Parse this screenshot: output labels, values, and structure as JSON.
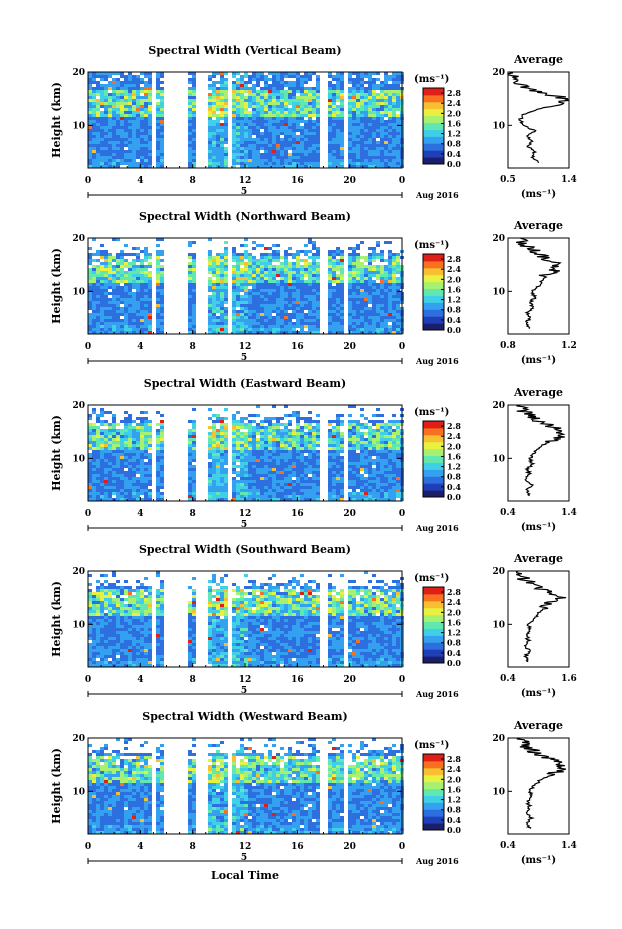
{
  "figure": {
    "xlabel": "Local Time",
    "date_label": "Aug 2016",
    "colorbar_unit": "(ms⁻¹)",
    "colorbar_ticks": [
      "0.0",
      "0.4",
      "0.8",
      "1.2",
      "1.6",
      "2.0",
      "2.4",
      "2.8"
    ],
    "colormap": [
      "#1b1f6b",
      "#1f3fb8",
      "#2e6fe0",
      "#33a0f0",
      "#3fd0e8",
      "#60e8b0",
      "#a8f070",
      "#e8f040",
      "#f8c030",
      "#f87020",
      "#e02018"
    ]
  },
  "chart_data": [
    {
      "type": "heatmap",
      "title": "Spectral Width (Vertical Beam)",
      "ylabel": "Height (km)",
      "ylim": [
        2,
        20
      ],
      "yticks": [
        10,
        20
      ],
      "xlim": [
        0,
        24
      ],
      "xticks": [
        "0",
        "4",
        "8",
        "12",
        "16",
        "20",
        "0"
      ],
      "day_tick": "5",
      "colorbar_range": [
        0.0,
        3.0
      ],
      "gaps": [
        [
          4.6,
          5.1
        ],
        [
          5.7,
          7.4
        ],
        [
          8.0,
          8.9
        ],
        [
          10.4,
          10.9
        ],
        [
          17.7,
          18.2
        ],
        [
          19.3,
          19.8
        ]
      ],
      "profile": {
        "title": "Average",
        "xlim": [
          0.5,
          1.4
        ],
        "xticks": [
          "0.5",
          "1.4"
        ],
        "xlabel": "(ms⁻¹)",
        "heights": [
          3,
          4,
          5,
          6,
          7,
          8,
          9,
          10,
          11,
          12,
          13,
          14,
          15,
          16,
          17,
          18,
          19,
          20
        ],
        "values": [
          0.95,
          0.85,
          0.9,
          0.8,
          0.85,
          0.78,
          0.9,
          0.72,
          0.68,
          0.72,
          0.95,
          1.2,
          1.35,
          1.05,
          0.75,
          0.6,
          0.55,
          0.52
        ]
      }
    },
    {
      "type": "heatmap",
      "title": "Spectral Width (Northward Beam)",
      "ylabel": "Height (km)",
      "ylim": [
        2,
        20
      ],
      "yticks": [
        10,
        20
      ],
      "xlim": [
        0,
        24
      ],
      "xticks": [
        "0",
        "4",
        "8",
        "12",
        "16",
        "20",
        "0"
      ],
      "day_tick": "5",
      "colorbar_range": [
        0.0,
        3.0
      ],
      "gaps": [
        [
          4.6,
          5.1
        ],
        [
          5.7,
          7.4
        ],
        [
          8.0,
          8.9
        ],
        [
          10.4,
          10.9
        ],
        [
          17.7,
          18.2
        ],
        [
          19.3,
          19.8
        ]
      ],
      "profile": {
        "title": "Average",
        "xlim": [
          0.8,
          1.2
        ],
        "xticks": [
          "0.8",
          "1.2"
        ],
        "xlabel": "(ms⁻¹)",
        "heights": [
          3,
          4,
          5,
          6,
          7,
          8,
          9,
          10,
          11,
          12,
          13,
          14,
          15,
          16,
          17,
          18,
          19,
          20
        ],
        "values": [
          0.95,
          0.92,
          0.94,
          0.93,
          0.96,
          0.95,
          0.98,
          0.95,
          1.0,
          1.02,
          1.05,
          1.1,
          1.12,
          1.06,
          1.0,
          0.95,
          0.9,
          0.88
        ]
      }
    },
    {
      "type": "heatmap",
      "title": "Spectral Width (Eastward Beam)",
      "ylabel": "Height (km)",
      "ylim": [
        2,
        20
      ],
      "yticks": [
        10,
        20
      ],
      "xlim": [
        0,
        24
      ],
      "xticks": [
        "0",
        "4",
        "8",
        "12",
        "16",
        "20",
        "0"
      ],
      "day_tick": "5",
      "colorbar_range": [
        0.0,
        3.0
      ],
      "gaps": [
        [
          4.6,
          5.1
        ],
        [
          5.7,
          7.4
        ],
        [
          8.0,
          8.9
        ],
        [
          10.4,
          10.9
        ],
        [
          17.7,
          18.2
        ],
        [
          19.3,
          19.8
        ]
      ],
      "profile": {
        "title": "Average",
        "xlim": [
          0.4,
          1.4
        ],
        "xticks": [
          "0.4",
          "1.4"
        ],
        "xlabel": "(ms⁻¹)",
        "heights": [
          3,
          4,
          5,
          6,
          7,
          8,
          9,
          10,
          11,
          12,
          13,
          14,
          15,
          16,
          17,
          18,
          19,
          20
        ],
        "values": [
          0.75,
          0.7,
          0.78,
          0.7,
          0.75,
          0.72,
          0.8,
          0.76,
          0.82,
          0.9,
          1.05,
          1.3,
          1.25,
          1.1,
          0.9,
          0.75,
          0.65,
          0.6
        ]
      }
    },
    {
      "type": "heatmap",
      "title": "Spectral Width (Southward Beam)",
      "ylabel": "Height (km)",
      "ylim": [
        2,
        20
      ],
      "yticks": [
        10,
        20
      ],
      "xlim": [
        0,
        24
      ],
      "xticks": [
        "0",
        "4",
        "8",
        "12",
        "16",
        "20",
        "0"
      ],
      "day_tick": "5",
      "colorbar_range": [
        0.0,
        3.0
      ],
      "gaps": [
        [
          4.6,
          5.1
        ],
        [
          5.7,
          7.4
        ],
        [
          8.0,
          8.9
        ],
        [
          10.4,
          10.9
        ],
        [
          17.7,
          18.2
        ],
        [
          19.3,
          19.8
        ]
      ],
      "profile": {
        "title": "Average",
        "xlim": [
          0.4,
          1.6
        ],
        "xticks": [
          "0.4",
          "1.6"
        ],
        "xlabel": "(ms⁻¹)",
        "heights": [
          3,
          4,
          5,
          6,
          7,
          8,
          9,
          10,
          11,
          12,
          13,
          14,
          15,
          16,
          17,
          18,
          19,
          20
        ],
        "values": [
          0.8,
          0.75,
          0.82,
          0.74,
          0.8,
          0.76,
          0.84,
          0.8,
          0.9,
          1.0,
          1.1,
          1.2,
          1.45,
          1.2,
          1.0,
          0.8,
          0.65,
          0.6
        ]
      }
    },
    {
      "type": "heatmap",
      "title": "Spectral Width (Westward Beam)",
      "ylabel": "Height (km)",
      "ylim": [
        2,
        20
      ],
      "yticks": [
        10,
        20
      ],
      "xlim": [
        0,
        24
      ],
      "xticks": [
        "0",
        "4",
        "8",
        "12",
        "16",
        "20",
        "0"
      ],
      "day_tick": "5",
      "colorbar_range": [
        0.0,
        3.0
      ],
      "gaps": [
        [
          4.6,
          5.1
        ],
        [
          5.7,
          7.4
        ],
        [
          8.0,
          8.9
        ],
        [
          10.4,
          10.9
        ],
        [
          17.7,
          18.2
        ],
        [
          19.3,
          19.8
        ]
      ],
      "profile": {
        "title": "Average",
        "xlim": [
          0.4,
          1.4
        ],
        "xticks": [
          "0.4",
          "1.4"
        ],
        "xlabel": "(ms⁻¹)",
        "heights": [
          3,
          4,
          5,
          6,
          7,
          8,
          9,
          10,
          11,
          12,
          13,
          14,
          15,
          16,
          17,
          18,
          19,
          20
        ],
        "values": [
          0.75,
          0.7,
          0.78,
          0.72,
          0.76,
          0.72,
          0.8,
          0.76,
          0.82,
          0.92,
          1.1,
          1.25,
          1.3,
          1.1,
          0.9,
          0.75,
          0.65,
          0.6
        ]
      }
    }
  ]
}
